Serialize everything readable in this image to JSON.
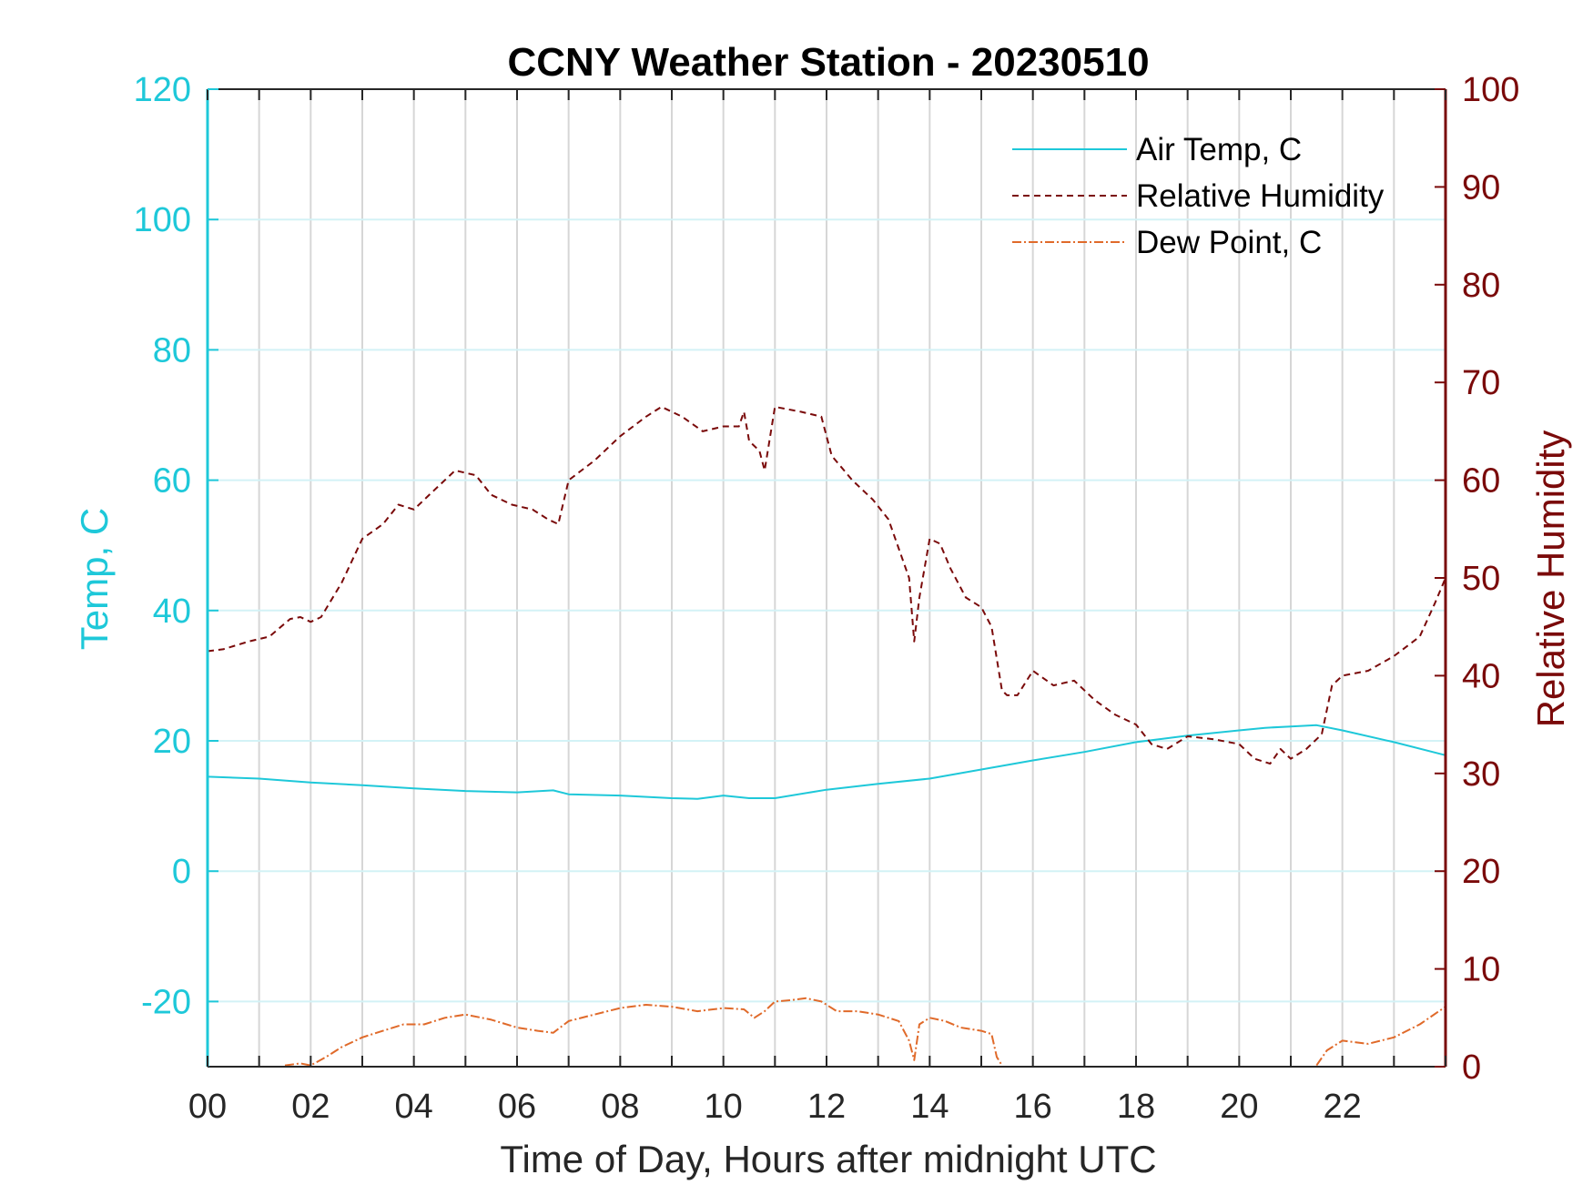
{
  "chart_data": {
    "type": "line",
    "title": "CCNY Weather Station - 20230510",
    "xlabel": "Time of Day, Hours after midnight UTC",
    "ylabel_left": "Temp, C",
    "ylabel_right": "Relative Humidity",
    "xlim": [
      0,
      24
    ],
    "ylim_left": [
      -30,
      120
    ],
    "ylim_right": [
      0,
      100
    ],
    "x_ticks": [
      "00",
      "02",
      "04",
      "06",
      "08",
      "10",
      "12",
      "14",
      "16",
      "18",
      "20",
      "22"
    ],
    "x_tick_values": [
      0,
      2,
      4,
      6,
      8,
      10,
      12,
      14,
      16,
      18,
      20,
      22
    ],
    "y_left_ticks": [
      -20,
      0,
      20,
      40,
      60,
      80,
      100,
      120
    ],
    "y_right_ticks": [
      0,
      10,
      20,
      30,
      40,
      50,
      60,
      70,
      80,
      90,
      100
    ],
    "grid": "on",
    "legend_position": "top-right",
    "colors": {
      "air_temp": "#1ec8d9",
      "humidity": "#7a0a0a",
      "dew_point": "#e06a2a",
      "left_axis": "#1ec8d9",
      "right_axis": "#7a0a0a"
    },
    "series": [
      {
        "name": "Air Temp, C",
        "axis": "left",
        "style": "solid",
        "x": [
          0,
          1,
          2,
          3,
          4,
          5,
          6,
          6.7,
          7,
          8,
          9,
          9.5,
          10,
          10.5,
          11,
          12,
          13,
          14,
          15,
          16,
          17,
          18,
          18.5,
          19,
          20,
          20.5,
          21,
          21.5,
          22,
          23,
          24
        ],
        "values": [
          14.5,
          14.2,
          13.6,
          13.2,
          12.7,
          12.3,
          12.1,
          12.4,
          11.8,
          11.6,
          11.2,
          11.1,
          11.6,
          11.2,
          11.2,
          12.5,
          13.4,
          14.2,
          15.6,
          17.0,
          18.3,
          19.8,
          20.3,
          20.8,
          21.6,
          22.0,
          22.2,
          22.4,
          21.6,
          19.8,
          17.8
        ]
      },
      {
        "name": "Relative Humidity",
        "axis": "right",
        "style": "dashed",
        "x": [
          0,
          0.3,
          0.8,
          1.2,
          1.6,
          1.8,
          2.0,
          2.2,
          2.6,
          3.0,
          3.4,
          3.7,
          4.0,
          4.4,
          4.8,
          5.2,
          5.5,
          5.9,
          6.3,
          6.6,
          6.8,
          7.0,
          7.5,
          8.0,
          8.5,
          8.8,
          9.2,
          9.6,
          10.0,
          10.3,
          10.4,
          10.5,
          10.7,
          10.8,
          11.0,
          11.5,
          11.9,
          12.1,
          12.5,
          12.9,
          13.2,
          13.6,
          13.7,
          13.8,
          14.0,
          14.2,
          14.4,
          14.7,
          15.0,
          15.2,
          15.4,
          15.5,
          15.7,
          16.0,
          16.4,
          16.8,
          17.2,
          17.6,
          18.0,
          18.3,
          18.6,
          19.0,
          19.5,
          20.0,
          20.3,
          20.6,
          20.8,
          21.0,
          21.3,
          21.6,
          21.8,
          22.0,
          22.5,
          23.0,
          23.5,
          23.8,
          24.0
        ],
        "values": [
          42.5,
          42.7,
          43.5,
          44.0,
          45.8,
          46.0,
          45.5,
          46.0,
          49.5,
          54.0,
          55.5,
          57.5,
          57.0,
          59.0,
          61.0,
          60.5,
          58.5,
          57.5,
          57.0,
          56.0,
          55.5,
          60.0,
          62.0,
          64.5,
          66.5,
          67.5,
          66.5,
          65.0,
          65.5,
          65.5,
          67.0,
          64.0,
          63.0,
          61.0,
          67.5,
          67.0,
          66.5,
          62.5,
          60.0,
          58.0,
          56.0,
          50.0,
          43.5,
          48.0,
          54.0,
          53.5,
          51.0,
          48.0,
          47.0,
          45.0,
          38.5,
          38.0,
          38.0,
          40.5,
          39.0,
          39.5,
          37.5,
          36.0,
          35.0,
          33.0,
          32.5,
          33.8,
          33.5,
          33.0,
          31.5,
          31.0,
          32.5,
          31.5,
          32.5,
          34.0,
          39.0,
          40.0,
          40.5,
          42.0,
          44.0,
          47.5,
          50.0
        ]
      },
      {
        "name": "Dew Point, C",
        "axis": "left",
        "style": "dash-dot",
        "segments": [
          {
            "x": [
              1.5,
              1.8,
              2.0,
              2.3,
              2.6,
              3.0,
              3.4,
              3.8,
              4.2,
              4.6,
              5.0,
              5.5,
              6.0,
              6.4,
              6.7,
              7.0,
              7.5,
              8.0,
              8.5,
              9.0,
              9.5,
              10.0,
              10.4,
              10.6,
              10.8,
              11.0,
              11.3,
              11.6,
              11.9,
              12.2,
              12.6,
              13.0,
              13.4,
              13.6,
              13.7,
              13.8,
              14.0,
              14.3,
              14.6,
              15.0,
              15.2,
              15.3,
              15.4
            ],
            "values": [
              -29.8,
              -29.5,
              -29.8,
              -28.5,
              -27.0,
              -25.5,
              -24.5,
              -23.5,
              -23.5,
              -22.5,
              -22.0,
              -22.8,
              -24.0,
              -24.5,
              -24.8,
              -23.0,
              -22.0,
              -21.0,
              -20.5,
              -20.8,
              -21.5,
              -21.0,
              -21.2,
              -22.5,
              -21.5,
              -20.0,
              -19.8,
              -19.5,
              -20.0,
              -21.5,
              -21.5,
              -22.0,
              -23.0,
              -26.0,
              -29.0,
              -23.5,
              -22.5,
              -23.0,
              -24.0,
              -24.5,
              -25.0,
              -28.5,
              -29.8
            ]
          },
          {
            "x": [
              21.5,
              21.7,
              22.0,
              22.5,
              23.0,
              23.5,
              24.0
            ],
            "values": [
              -29.8,
              -27.5,
              -26.0,
              -26.5,
              -25.5,
              -23.5,
              -20.8
            ]
          }
        ]
      }
    ]
  }
}
